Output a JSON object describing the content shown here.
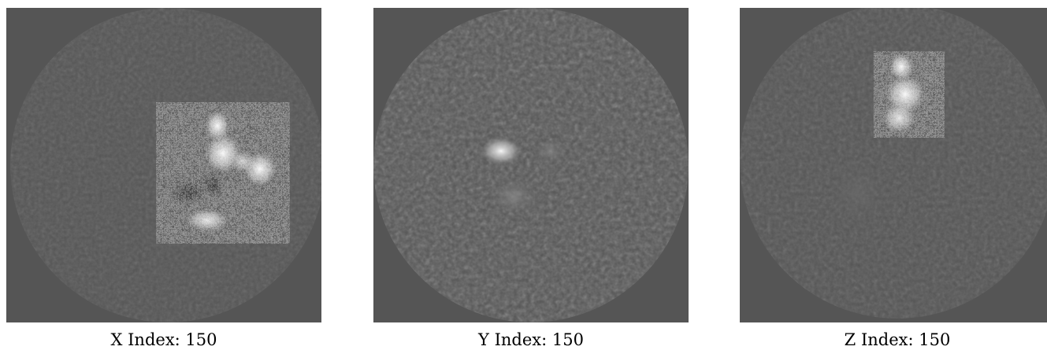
{
  "slices": [
    {
      "axis": "X",
      "caption": "X Index: 150"
    },
    {
      "axis": "Y",
      "caption": "Y Index: 150"
    },
    {
      "axis": "Z",
      "caption": "Z Index: 150"
    }
  ],
  "colors": {
    "background": "#ffffff",
    "slice_background": "#555555",
    "caption_text": "#000000"
  }
}
